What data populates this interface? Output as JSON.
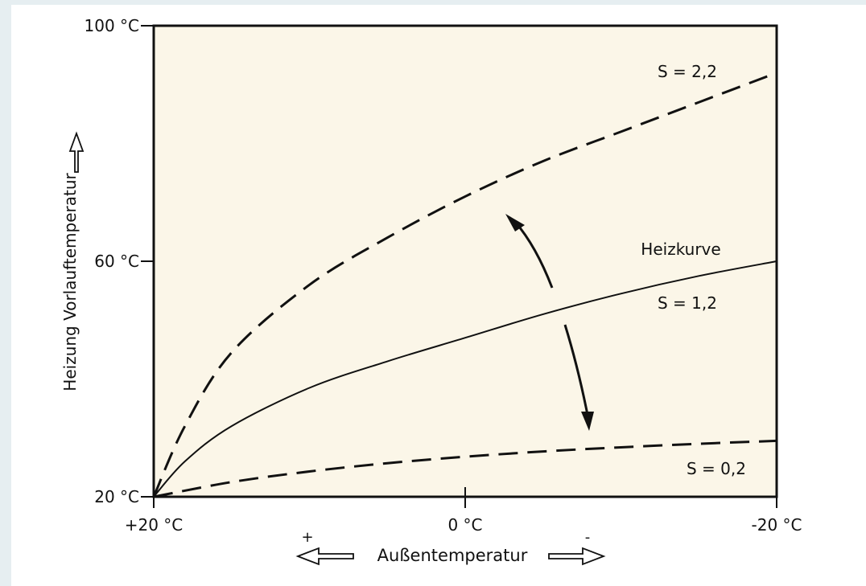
{
  "chart_data": {
    "type": "line",
    "title": "",
    "xlabel": "Außentemperatur",
    "ylabel": "Heizung Vorlauftemperatur",
    "x_direction_plus": "+",
    "x_direction_minus": "-",
    "xlim": [
      20,
      -20
    ],
    "ylim": [
      20,
      100
    ],
    "x_ticks": [
      {
        "value": 20,
        "label": "+20 °C"
      },
      {
        "value": 0,
        "label": "0 °C"
      },
      {
        "value": -20,
        "label": "-20 °C"
      }
    ],
    "y_ticks": [
      {
        "value": 100,
        "label": "100 °C"
      },
      {
        "value": 60,
        "label": "60 °C"
      },
      {
        "value": 20,
        "label": "20 °C"
      }
    ],
    "grid": false,
    "annotation": "Heizkurve",
    "series": [
      {
        "name": "S = 2,2",
        "style": "dashed",
        "x": [
          20,
          18,
          15,
          10,
          5,
          0,
          -5,
          -10,
          -15,
          -20
        ],
        "y": [
          20,
          32,
          44.5,
          56,
          64,
          71,
          77,
          82,
          87,
          92
        ]
      },
      {
        "name": "S = 1,2",
        "style": "solid",
        "x": [
          20,
          18,
          15,
          10,
          5,
          0,
          -5,
          -10,
          -15,
          -20
        ],
        "y": [
          20,
          26,
          32,
          38.5,
          43,
          47,
          51,
          54.5,
          57.5,
          60
        ]
      },
      {
        "name": "S = 0,2",
        "style": "dashed",
        "x": [
          20,
          15,
          10,
          5,
          0,
          -5,
          -10,
          -15,
          -20
        ],
        "y": [
          20,
          22.5,
          24.3,
          25.7,
          26.8,
          27.7,
          28.4,
          29,
          29.5
        ]
      }
    ]
  }
}
